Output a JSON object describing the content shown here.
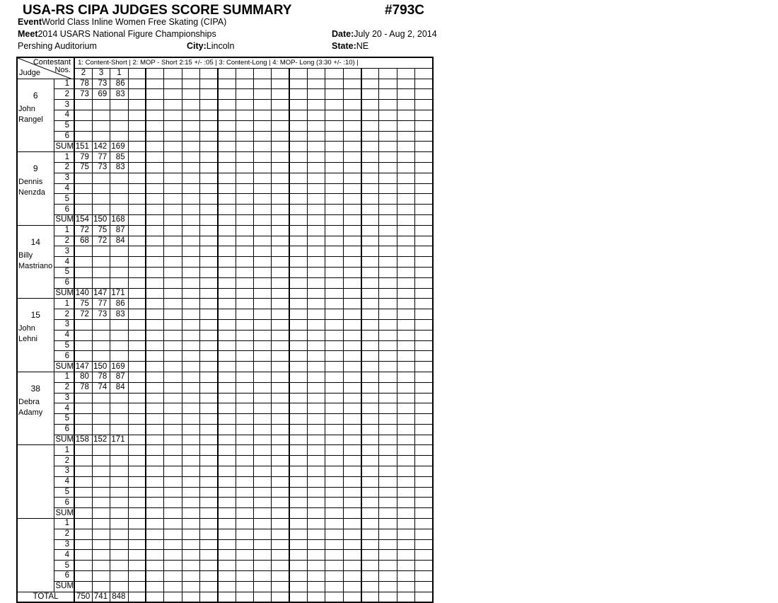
{
  "header": {
    "title": "USA-RS CIPA JUDGES SCORE SUMMARY",
    "form_code": "#793C",
    "event_label": "Event",
    "event": "World Class Inline Women Free Skating  (CIPA)",
    "meet_label": "Meet",
    "meet": "2014 USARS National Figure Championships",
    "date_label": "Date:",
    "date": "July 20 - Aug 2, 2014",
    "venue": "Pershing Auditorium",
    "city_label": "City:",
    "city": "Lincoln",
    "state_label": "State:",
    "state": "NE"
  },
  "table": {
    "corner_top": "Contestant",
    "corner_nos": "Nos.",
    "corner_judge": "Judge",
    "criteria_legend": "1: Content-Short |  2: MOP - Short 2:15 +/- :05  |  3: Content-Long |  4: MOP- Long (3:30 +/- :10) |",
    "contestant_numbers": [
      "2",
      "3",
      "1"
    ],
    "row_labels": [
      "1",
      "2",
      "3",
      "4",
      "5",
      "6",
      "SUM"
    ],
    "total_label": "TOTAL",
    "totals": [
      "750",
      "741",
      "848"
    ],
    "judges": [
      {
        "number": "6",
        "name": [
          "John",
          "Rangel"
        ],
        "scores": [
          [
            "78",
            "73",
            "86"
          ],
          [
            "73",
            "69",
            "83"
          ]
        ],
        "sums": [
          "151",
          "142",
          "169"
        ]
      },
      {
        "number": "9",
        "name": [
          "Dennis",
          "Nenzda"
        ],
        "scores": [
          [
            "79",
            "77",
            "85"
          ],
          [
            "75",
            "73",
            "83"
          ]
        ],
        "sums": [
          "154",
          "150",
          "168"
        ]
      },
      {
        "number": "14",
        "name": [
          "Billy",
          "Mastriano"
        ],
        "scores": [
          [
            "72",
            "75",
            "87"
          ],
          [
            "68",
            "72",
            "84"
          ]
        ],
        "sums": [
          "140",
          "147",
          "171"
        ]
      },
      {
        "number": "15",
        "name": [
          "John",
          "Lehni"
        ],
        "scores": [
          [
            "75",
            "77",
            "86"
          ],
          [
            "72",
            "73",
            "83"
          ]
        ],
        "sums": [
          "147",
          "150",
          "169"
        ]
      },
      {
        "number": "38",
        "name": [
          "Debra",
          "Adamy"
        ],
        "scores": [
          [
            "80",
            "78",
            "87"
          ],
          [
            "78",
            "74",
            "84"
          ]
        ],
        "sums": [
          "158",
          "152",
          "171"
        ]
      },
      {
        "number": "",
        "name": [],
        "scores": [],
        "sums": []
      },
      {
        "number": "",
        "name": [],
        "scores": [],
        "sums": []
      }
    ]
  }
}
